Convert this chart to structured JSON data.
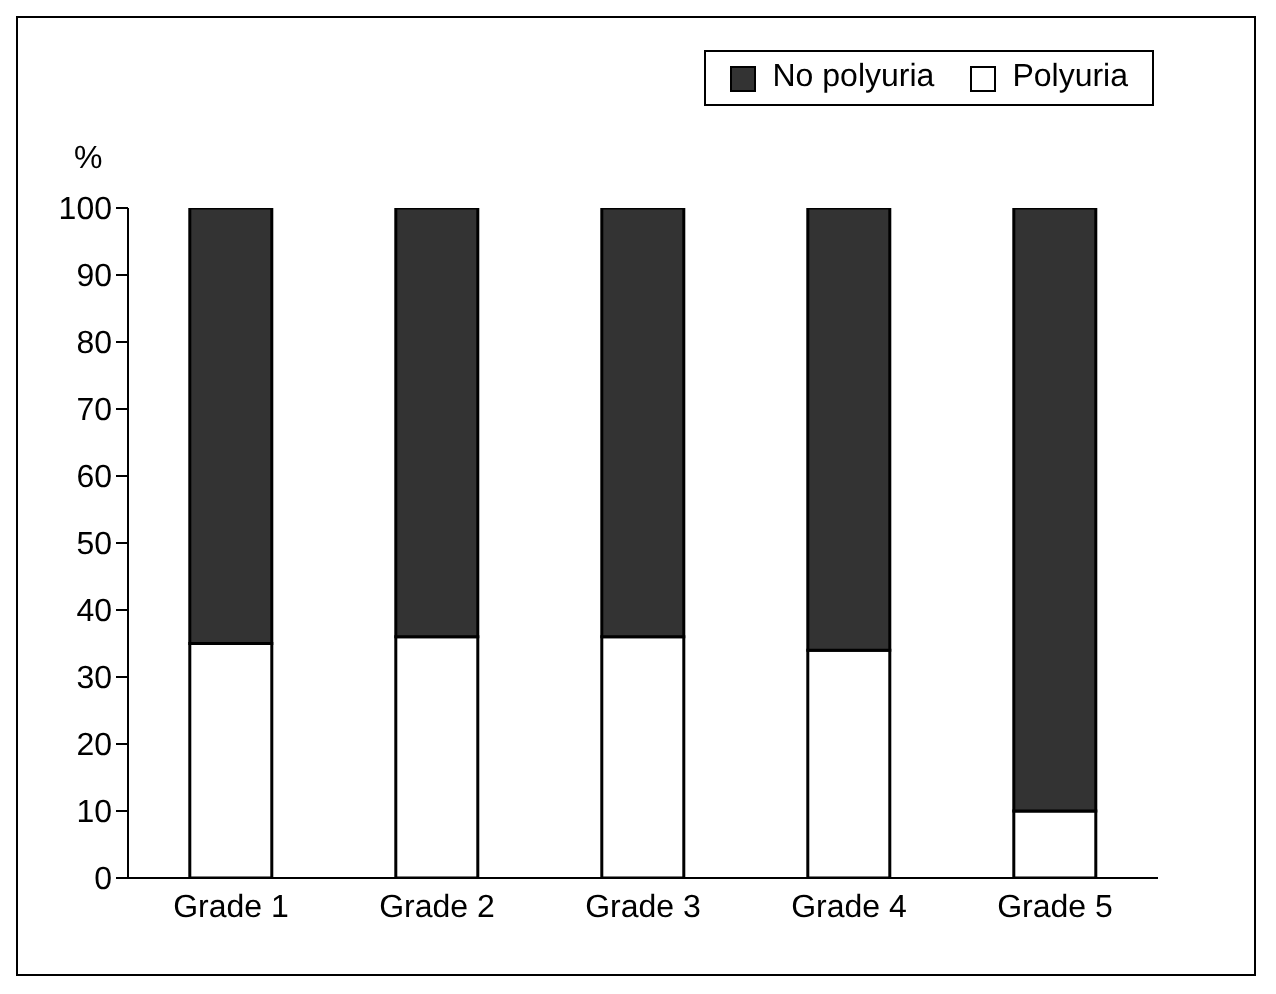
{
  "chart_data": {
    "type": "bar",
    "ylabel": "%",
    "categories": [
      "Grade 1",
      "Grade 2",
      "Grade 3",
      "Grade 4",
      "Grade 5"
    ],
    "stacked": true,
    "series": [
      {
        "name": "Polyuria",
        "color": "#ffffff",
        "values": [
          35,
          36,
          36,
          34,
          10
        ]
      },
      {
        "name": "No polyuria",
        "color": "#333333",
        "values": [
          65,
          64,
          64,
          66,
          90
        ]
      }
    ],
    "ylim": [
      0,
      100
    ],
    "yticks": [
      0,
      10,
      20,
      30,
      40,
      50,
      60,
      70,
      80,
      90,
      100
    ],
    "grid": false,
    "legend": "top right"
  }
}
